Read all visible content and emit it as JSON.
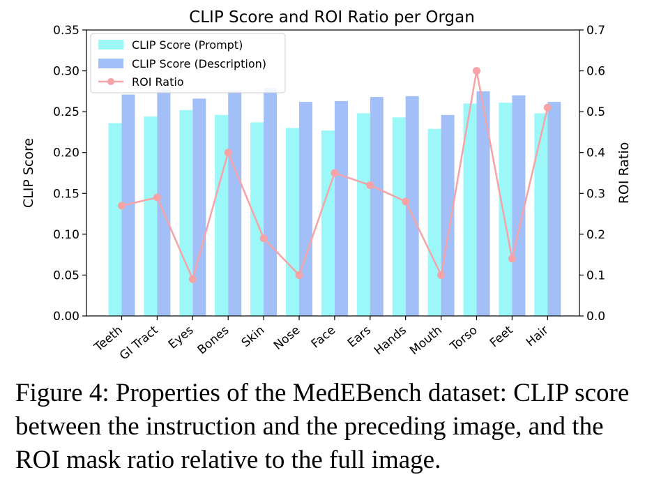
{
  "chart_data": {
    "type": "bar",
    "title": "CLIP Score and ROI Ratio per Organ",
    "ylabel": "CLIP Score",
    "y2label": "ROI Ratio",
    "ylim": [
      0,
      0.35
    ],
    "y2lim": [
      0,
      0.7
    ],
    "yticks": [
      "0.00",
      "0.05",
      "0.10",
      "0.15",
      "0.20",
      "0.25",
      "0.30",
      "0.35"
    ],
    "y2ticks": [
      "0.0",
      "0.1",
      "0.2",
      "0.3",
      "0.4",
      "0.5",
      "0.6",
      "0.7"
    ],
    "categories": [
      "Teeth",
      "GI Tract",
      "Eyes",
      "Bones",
      "Skin",
      "Nose",
      "Face",
      "Ears",
      "Hands",
      "Mouth",
      "Torso",
      "Feet",
      "Hair"
    ],
    "series": [
      {
        "name": "CLIP Score (Prompt)",
        "type": "bar",
        "axis": "left",
        "color": "#9cf8f8",
        "values": [
          0.236,
          0.244,
          0.252,
          0.246,
          0.237,
          0.23,
          0.227,
          0.248,
          0.243,
          0.229,
          0.26,
          0.261,
          0.248
        ]
      },
      {
        "name": "CLIP Score (Description)",
        "type": "bar",
        "axis": "left",
        "color": "#a3bff7",
        "values": [
          0.271,
          0.277,
          0.266,
          0.276,
          0.279,
          0.262,
          0.263,
          0.268,
          0.269,
          0.246,
          0.275,
          0.27,
          0.262
        ]
      },
      {
        "name": "ROI Ratio",
        "type": "line",
        "axis": "right",
        "color": "#f5a3a7",
        "values": [
          0.27,
          0.29,
          0.09,
          0.4,
          0.19,
          0.1,
          0.35,
          0.32,
          0.28,
          0.1,
          0.6,
          0.14,
          0.51
        ]
      }
    ],
    "legend_position": "top-left",
    "grid": false
  },
  "caption": "Figure 4: Properties of the MedEBench dataset: CLIP score between the instruction and the preceding image, and the ROI mask ratio relative to the full image."
}
